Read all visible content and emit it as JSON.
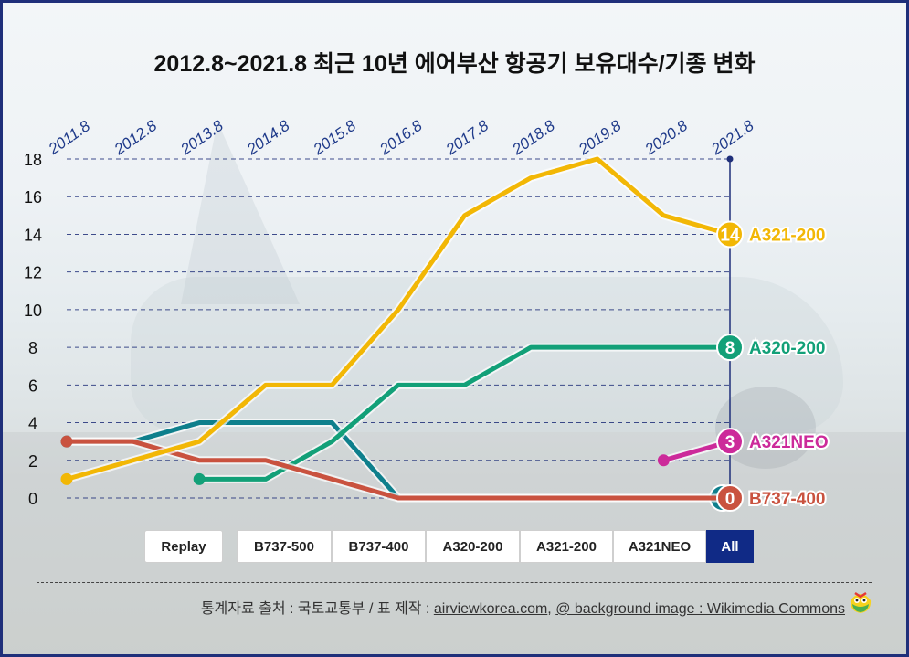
{
  "title": "2012.8~2021.8 최근 10년 에어부산 항공기 보유대수/기종 변화",
  "buttons": {
    "replay": "Replay",
    "filters": [
      "B737-500",
      "B737-400",
      "A320-200",
      "A321-200",
      "A321NEO",
      "All"
    ],
    "active": "All"
  },
  "source": {
    "prefix": "통계자료 출처 : 국토교통부 / 표 제작 : ",
    "site": "airviewkorea.com",
    "separator": ", ",
    "image_credit": "@ background image : Wikimedia Commons"
  },
  "colors": {
    "B737-500": "#0e7f8c",
    "B737-400": "#c9523f",
    "A320-200": "#12a078",
    "A321-200": "#f2b705",
    "A321NEO": "#cc2a9a",
    "grid": "#1f2f7a"
  },
  "chart_data": {
    "type": "line",
    "title": "2012.8~2021.8 최근 10년 에어부산 항공기 보유대수/기종 변화",
    "categories": [
      "2011.8",
      "2012.8",
      "2013.8",
      "2014.8",
      "2015.8",
      "2016.8",
      "2017.8",
      "2018.8",
      "2019.8",
      "2020.8",
      "2021.8"
    ],
    "ylim": [
      0,
      18
    ],
    "yticks": [
      0,
      2,
      4,
      6,
      8,
      10,
      12,
      14,
      16,
      18
    ],
    "grid": true,
    "legend": "end-of-line labels",
    "series": [
      {
        "name": "B737-500",
        "values": [
          3,
          3,
          4,
          4,
          4,
          0,
          0,
          0,
          0,
          0,
          0
        ],
        "end_value": "0"
      },
      {
        "name": "B737-400",
        "values": [
          3,
          3,
          2,
          2,
          1,
          0,
          0,
          0,
          0,
          0,
          0
        ],
        "end_value": "0"
      },
      {
        "name": "A320-200",
        "values": [
          null,
          null,
          1,
          1,
          3,
          6,
          6,
          8,
          8,
          8,
          8
        ],
        "end_value": "8"
      },
      {
        "name": "A321-200",
        "values": [
          1,
          2,
          3,
          6,
          6,
          10,
          15,
          17,
          18,
          15,
          14
        ],
        "end_value": "14"
      },
      {
        "name": "A321NEO",
        "values": [
          null,
          null,
          null,
          null,
          null,
          null,
          null,
          null,
          null,
          2,
          3
        ],
        "end_value": "3"
      }
    ]
  }
}
